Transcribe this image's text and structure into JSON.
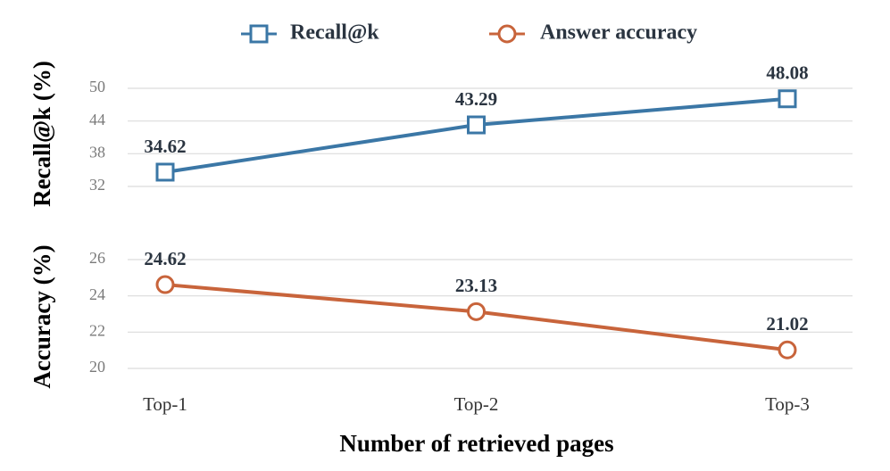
{
  "chart_data": [
    {
      "type": "line",
      "y_label": "Recall@k (%)",
      "series": [
        {
          "name": "Recall@k",
          "color": "#3b77a6",
          "marker": "square",
          "values": [
            34.62,
            43.29,
            48.08
          ]
        }
      ],
      "ylim": [
        30,
        53
      ],
      "yticks": [
        32,
        38,
        44,
        50
      ],
      "grid": true
    },
    {
      "type": "line",
      "y_label": "Accuracy (%)",
      "x_label": "Number of retrieved pages",
      "categories": [
        "Top-1",
        "Top-2",
        "Top-3"
      ],
      "series": [
        {
          "name": "Answer accuracy",
          "color": "#c8643b",
          "marker": "circle",
          "values": [
            24.62,
            23.13,
            21.02
          ]
        }
      ],
      "ylim": [
        19.4,
        26.6
      ],
      "yticks": [
        20,
        22,
        24,
        26
      ],
      "grid": true
    }
  ]
}
